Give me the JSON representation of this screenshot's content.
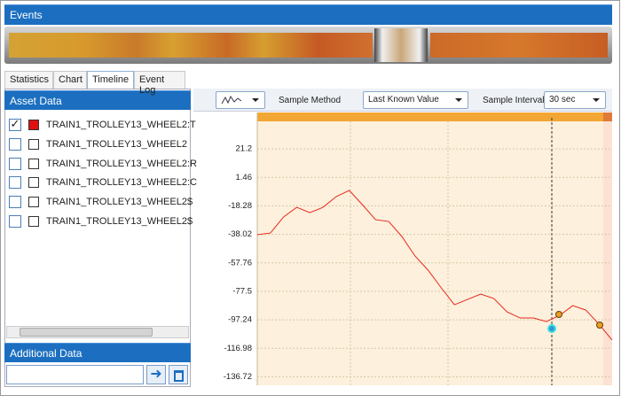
{
  "window": {
    "title": "Events"
  },
  "tabs": [
    "Statistics",
    "Chart",
    "Timeline",
    "Event Log"
  ],
  "active_tab": 2,
  "asset_panel": {
    "title": "Asset Data",
    "items": [
      {
        "label": "TRAIN1_TROLLEY13_WHEEL2:T",
        "checked": true,
        "color": "#e01010"
      },
      {
        "label": "TRAIN1_TROLLEY13_WHEEL2",
        "checked": false,
        "color": "#ffffff"
      },
      {
        "label": "TRAIN1_TROLLEY13_WHEEL2:R",
        "checked": false,
        "color": "#ffffff"
      },
      {
        "label": "TRAIN1_TROLLEY13_WHEEL2:C",
        "checked": false,
        "color": "#ffffff"
      },
      {
        "label": "TRAIN1_TROLLEY13_WHEEL2$",
        "checked": false,
        "color": "#ffffff"
      },
      {
        "label": "TRAIN1_TROLLEY13_WHEEL2$",
        "checked": false,
        "color": "#ffffff"
      }
    ]
  },
  "additional_panel": {
    "title": "Additional Data"
  },
  "toolbar": {
    "sample_method_label": "Sample Method",
    "sample_method": "Last Known Value",
    "sample_interval_label": "Sample Interval",
    "sample_interval": "30 sec"
  },
  "chart_data": {
    "type": "line",
    "categories": [
      null,
      null,
      null,
      null,
      null,
      null,
      null,
      null,
      null,
      null,
      null,
      null,
      null,
      null,
      null,
      null,
      null,
      null,
      null,
      null,
      null,
      null,
      null,
      null,
      null,
      null,
      null,
      null
    ],
    "values": [
      -38.3,
      -37.1,
      -26.0,
      -19.3,
      -23.0,
      -19.3,
      -11.9,
      -7.6,
      -17.5,
      -27.9,
      -29.1,
      -39.5,
      -53.0,
      -62.9,
      -75.1,
      -86.8,
      -83.1,
      -79.4,
      -82.5,
      -91.7,
      -96.0,
      -96.0,
      -98.5,
      -94.2,
      -87.4,
      -90.5,
      -100.3,
      -111.3
    ],
    "color": "#e8281e",
    "ylim": [
      -142.6,
      46.4
    ],
    "yticks": [
      21.2,
      1.46,
      -18.28,
      -38.02,
      -57.76,
      -77.5,
      -97.24,
      -116.98,
      -136.72
    ],
    "grid": true
  }
}
